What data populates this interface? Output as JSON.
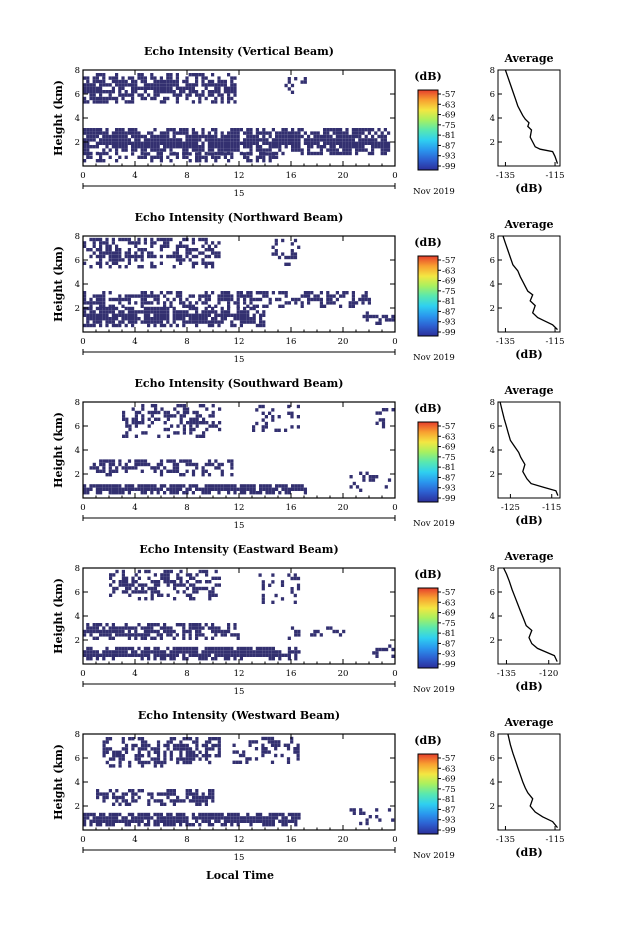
{
  "figure": {
    "xlabel": "Local Time",
    "date_label": "Nov 2019",
    "day_label": "15"
  },
  "colorbar": {
    "unit": "(dB)",
    "tick_labels": [
      "-57",
      "-63",
      "-69",
      "-75",
      "-81",
      "-87",
      "-93",
      "-99"
    ],
    "colors": [
      "#2b2f9a",
      "#2d5fd0",
      "#2a97ee",
      "#2fd0f0",
      "#58e8b0",
      "#a8f060",
      "#f4e642",
      "#f8a030",
      "#e53d2c"
    ]
  },
  "chart_data": [
    {
      "type": "heatmap",
      "title": "Echo Intensity (Vertical Beam)",
      "ylabel": "Height (km)",
      "xlim": [
        0,
        24
      ],
      "ylim": [
        0,
        8
      ],
      "xticks": [
        "0",
        "4",
        "8",
        "12",
        "16",
        "20",
        "0"
      ],
      "yticks": [
        "2",
        "4",
        "6",
        "8"
      ],
      "layers": [
        {
          "h0": 5.2,
          "h1": 7.6,
          "t0": 0.0,
          "t1": 11.8,
          "density": 0.7
        },
        {
          "h0": 0.9,
          "h1": 3.0,
          "t0": 0.0,
          "t1": 23.5,
          "density": 0.85
        },
        {
          "h0": 0.3,
          "h1": 0.9,
          "t0": 0.0,
          "t1": 15.0,
          "density": 0.55
        },
        {
          "h0": 6.0,
          "h1": 7.5,
          "t0": 15.5,
          "t1": 17.0,
          "density": 0.3
        }
      ],
      "average": {
        "title": "Average",
        "xlabel": "(dB)",
        "xticks": [
          "-135",
          "-115"
        ],
        "yticks": [
          "2",
          "4",
          "6",
          "8"
        ],
        "xlim": [
          -138,
          -113
        ],
        "ylim": [
          0,
          8
        ],
        "profile": [
          [
            -114,
            0.2
          ],
          [
            -115,
            0.8
          ],
          [
            -116,
            1.2
          ],
          [
            -121,
            1.4
          ],
          [
            -123,
            1.6
          ],
          [
            -124,
            2.0
          ],
          [
            -125,
            2.4
          ],
          [
            -124.5,
            3.0
          ],
          [
            -126,
            3.3
          ],
          [
            -125.5,
            3.6
          ],
          [
            -127,
            3.9
          ],
          [
            -128,
            4.2
          ],
          [
            -129,
            4.6
          ],
          [
            -130,
            5.0
          ],
          [
            -131,
            5.6
          ],
          [
            -132,
            6.2
          ],
          [
            -133,
            6.8
          ],
          [
            -134,
            7.4
          ],
          [
            -135,
            8.0
          ]
        ]
      }
    },
    {
      "type": "heatmap",
      "title": "Echo Intensity (Northward Beam)",
      "ylabel": "Height (km)",
      "xlim": [
        0,
        24
      ],
      "ylim": [
        0,
        8
      ],
      "xticks": [
        "0",
        "4",
        "8",
        "12",
        "16",
        "20",
        "0"
      ],
      "yticks": [
        "2",
        "4",
        "6",
        "8"
      ],
      "layers": [
        {
          "h0": 5.3,
          "h1": 7.8,
          "t0": 0.0,
          "t1": 10.5,
          "density": 0.55
        },
        {
          "h0": 5.5,
          "h1": 7.5,
          "t0": 14.5,
          "t1": 16.5,
          "density": 0.35
        },
        {
          "h0": 2.0,
          "h1": 3.3,
          "t0": 0.0,
          "t1": 22.0,
          "density": 0.6
        },
        {
          "h0": 0.4,
          "h1": 1.9,
          "t0": 0.0,
          "t1": 14.0,
          "density": 0.85
        },
        {
          "h0": 0.3,
          "h1": 1.6,
          "t0": 21.5,
          "t1": 24.0,
          "density": 0.4
        }
      ],
      "average": {
        "title": "Average",
        "xlabel": "(dB)",
        "xticks": [
          "-135",
          "-115"
        ],
        "yticks": [
          "2",
          "4",
          "6",
          "8"
        ],
        "xlim": [
          -138,
          -113
        ],
        "ylim": [
          0,
          8
        ],
        "profile": [
          [
            -114,
            0.2
          ],
          [
            -116,
            0.6
          ],
          [
            -119,
            0.9
          ],
          [
            -122,
            1.2
          ],
          [
            -124,
            1.6
          ],
          [
            -123,
            2.2
          ],
          [
            -125,
            2.6
          ],
          [
            -124,
            3.1
          ],
          [
            -126,
            3.4
          ],
          [
            -127,
            3.8
          ],
          [
            -128,
            4.2
          ],
          [
            -129,
            4.6
          ],
          [
            -130,
            5.1
          ],
          [
            -132,
            5.6
          ],
          [
            -133,
            6.2
          ],
          [
            -134,
            6.8
          ],
          [
            -135,
            7.4
          ],
          [
            -136,
            8.0
          ]
        ]
      }
    },
    {
      "type": "heatmap",
      "title": "Echo Intensity (Southward Beam)",
      "ylabel": "Height (km)",
      "xlim": [
        0,
        24
      ],
      "ylim": [
        0,
        8
      ],
      "xticks": [
        "0",
        "4",
        "8",
        "12",
        "16",
        "20",
        "0"
      ],
      "yticks": [
        "2",
        "4",
        "6",
        "8"
      ],
      "layers": [
        {
          "h0": 5.0,
          "h1": 7.9,
          "t0": 3.0,
          "t1": 10.5,
          "density": 0.45
        },
        {
          "h0": 5.5,
          "h1": 7.6,
          "t0": 13.0,
          "t1": 16.5,
          "density": 0.25
        },
        {
          "h0": 5.8,
          "h1": 7.8,
          "t0": 22.5,
          "t1": 24.0,
          "density": 0.3
        },
        {
          "h0": 1.8,
          "h1": 3.2,
          "t0": 0.5,
          "t1": 11.5,
          "density": 0.55
        },
        {
          "h0": 0.3,
          "h1": 1.1,
          "t0": 0.0,
          "t1": 17.0,
          "density": 0.9
        },
        {
          "h0": 0.5,
          "h1": 2.0,
          "t0": 20.5,
          "t1": 24.0,
          "density": 0.3
        }
      ],
      "average": {
        "title": "Average",
        "xlabel": "(dB)",
        "xticks": [
          "-125",
          "-115"
        ],
        "yticks": [
          "2",
          "4",
          "6",
          "8"
        ],
        "xlim": [
          -128,
          -113
        ],
        "ylim": [
          0,
          8
        ],
        "profile": [
          [
            -113.5,
            0.2
          ],
          [
            -114,
            0.6
          ],
          [
            -117,
            0.9
          ],
          [
            -120,
            1.2
          ],
          [
            -121,
            1.6
          ],
          [
            -122,
            2.2
          ],
          [
            -121.5,
            2.8
          ],
          [
            -122.5,
            3.4
          ],
          [
            -123,
            3.8
          ],
          [
            -124,
            4.3
          ],
          [
            -125,
            4.8
          ],
          [
            -125.5,
            5.4
          ],
          [
            -126,
            6.0
          ],
          [
            -126.5,
            6.6
          ],
          [
            -127,
            7.3
          ],
          [
            -127.5,
            8.0
          ]
        ]
      }
    },
    {
      "type": "heatmap",
      "title": "Echo Intensity (Eastward Beam)",
      "ylabel": "Height (km)",
      "xlim": [
        0,
        24
      ],
      "ylim": [
        0,
        8
      ],
      "xticks": [
        "0",
        "4",
        "8",
        "12",
        "16",
        "20",
        "0"
      ],
      "yticks": [
        "2",
        "4",
        "6",
        "8"
      ],
      "layers": [
        {
          "h0": 5.3,
          "h1": 7.8,
          "t0": 2.0,
          "t1": 10.5,
          "density": 0.5
        },
        {
          "h0": 5.0,
          "h1": 7.5,
          "t0": 13.5,
          "t1": 16.5,
          "density": 0.25
        },
        {
          "h0": 2.0,
          "h1": 3.3,
          "t0": 0.0,
          "t1": 12.0,
          "density": 0.65
        },
        {
          "h0": 2.0,
          "h1": 3.0,
          "t0": 15.5,
          "t1": 20.0,
          "density": 0.35
        },
        {
          "h0": 0.3,
          "h1": 1.2,
          "t0": 0.0,
          "t1": 16.5,
          "density": 0.9
        },
        {
          "h0": 0.5,
          "h1": 1.6,
          "t0": 22.0,
          "t1": 24.0,
          "density": 0.35
        }
      ],
      "average": {
        "title": "Average",
        "xlabel": "(dB)",
        "xticks": [
          "-135",
          "-120"
        ],
        "yticks": [
          "2",
          "4",
          "6",
          "8"
        ],
        "xlim": [
          -138,
          -116
        ],
        "ylim": [
          0,
          8
        ],
        "profile": [
          [
            -117,
            0.2
          ],
          [
            -118,
            0.7
          ],
          [
            -121,
            1.0
          ],
          [
            -124,
            1.3
          ],
          [
            -126,
            1.7
          ],
          [
            -127,
            2.2
          ],
          [
            -126,
            2.8
          ],
          [
            -128,
            3.2
          ],
          [
            -129,
            3.8
          ],
          [
            -130,
            4.4
          ],
          [
            -131,
            5.0
          ],
          [
            -132,
            5.6
          ],
          [
            -133,
            6.2
          ],
          [
            -134,
            6.9
          ],
          [
            -135,
            7.5
          ],
          [
            -136,
            8.0
          ]
        ]
      }
    },
    {
      "type": "heatmap",
      "title": "Echo Intensity (Westward Beam)",
      "ylabel": "Height (km)",
      "xlim": [
        0,
        24
      ],
      "ylim": [
        0,
        8
      ],
      "xticks": [
        "0",
        "4",
        "8",
        "12",
        "16",
        "20",
        "0"
      ],
      "yticks": [
        "2",
        "4",
        "6",
        "8"
      ],
      "layers": [
        {
          "h0": 5.2,
          "h1": 7.9,
          "t0": 1.5,
          "t1": 10.5,
          "density": 0.55
        },
        {
          "h0": 5.5,
          "h1": 7.8,
          "t0": 11.5,
          "t1": 16.5,
          "density": 0.4
        },
        {
          "h0": 2.0,
          "h1": 3.2,
          "t0": 1.0,
          "t1": 10.0,
          "density": 0.65
        },
        {
          "h0": 0.3,
          "h1": 1.3,
          "t0": 0.0,
          "t1": 16.5,
          "density": 0.9
        },
        {
          "h0": 0.4,
          "h1": 1.8,
          "t0": 20.5,
          "t1": 24.0,
          "density": 0.3
        }
      ],
      "average": {
        "title": "Average",
        "xlabel": "(dB)",
        "xticks": [
          "-135",
          "-115"
        ],
        "yticks": [
          "2",
          "4",
          "6",
          "8"
        ],
        "xlim": [
          -138,
          -113
        ],
        "ylim": [
          0,
          8
        ],
        "profile": [
          [
            -114,
            0.2
          ],
          [
            -116,
            0.7
          ],
          [
            -120,
            1.1
          ],
          [
            -123,
            1.5
          ],
          [
            -125,
            2.0
          ],
          [
            -124,
            2.6
          ],
          [
            -126,
            3.1
          ],
          [
            -127,
            3.5
          ],
          [
            -128,
            4.0
          ],
          [
            -129,
            4.6
          ],
          [
            -130,
            5.2
          ],
          [
            -131,
            5.8
          ],
          [
            -132,
            6.4
          ],
          [
            -133,
            7.1
          ],
          [
            -134,
            8.0
          ]
        ]
      }
    }
  ]
}
